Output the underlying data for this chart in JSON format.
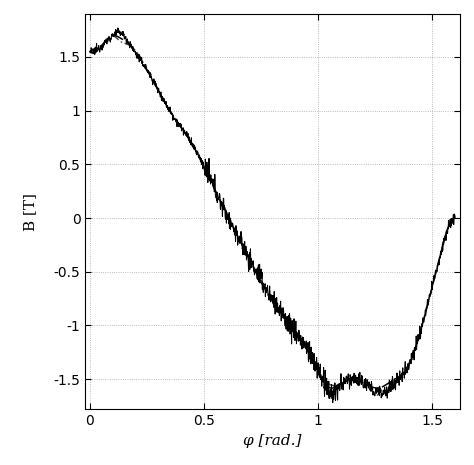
{
  "xlabel": "φ [rad.]",
  "ylabel": "B [T]",
  "xlim": [
    -0.02,
    1.62
  ],
  "ylim": [
    -1.78,
    1.9
  ],
  "yticks": [
    -1.5,
    -1.0,
    -0.5,
    0,
    0.5,
    1.0,
    1.5
  ],
  "xticks": [
    0,
    0.5,
    1.0,
    1.5
  ],
  "grid_color": "#999999",
  "bg_color": "#ffffff",
  "line_color_solid": "#000000",
  "line_color_dash": "#000000",
  "line_color_dotdash": "#444444"
}
